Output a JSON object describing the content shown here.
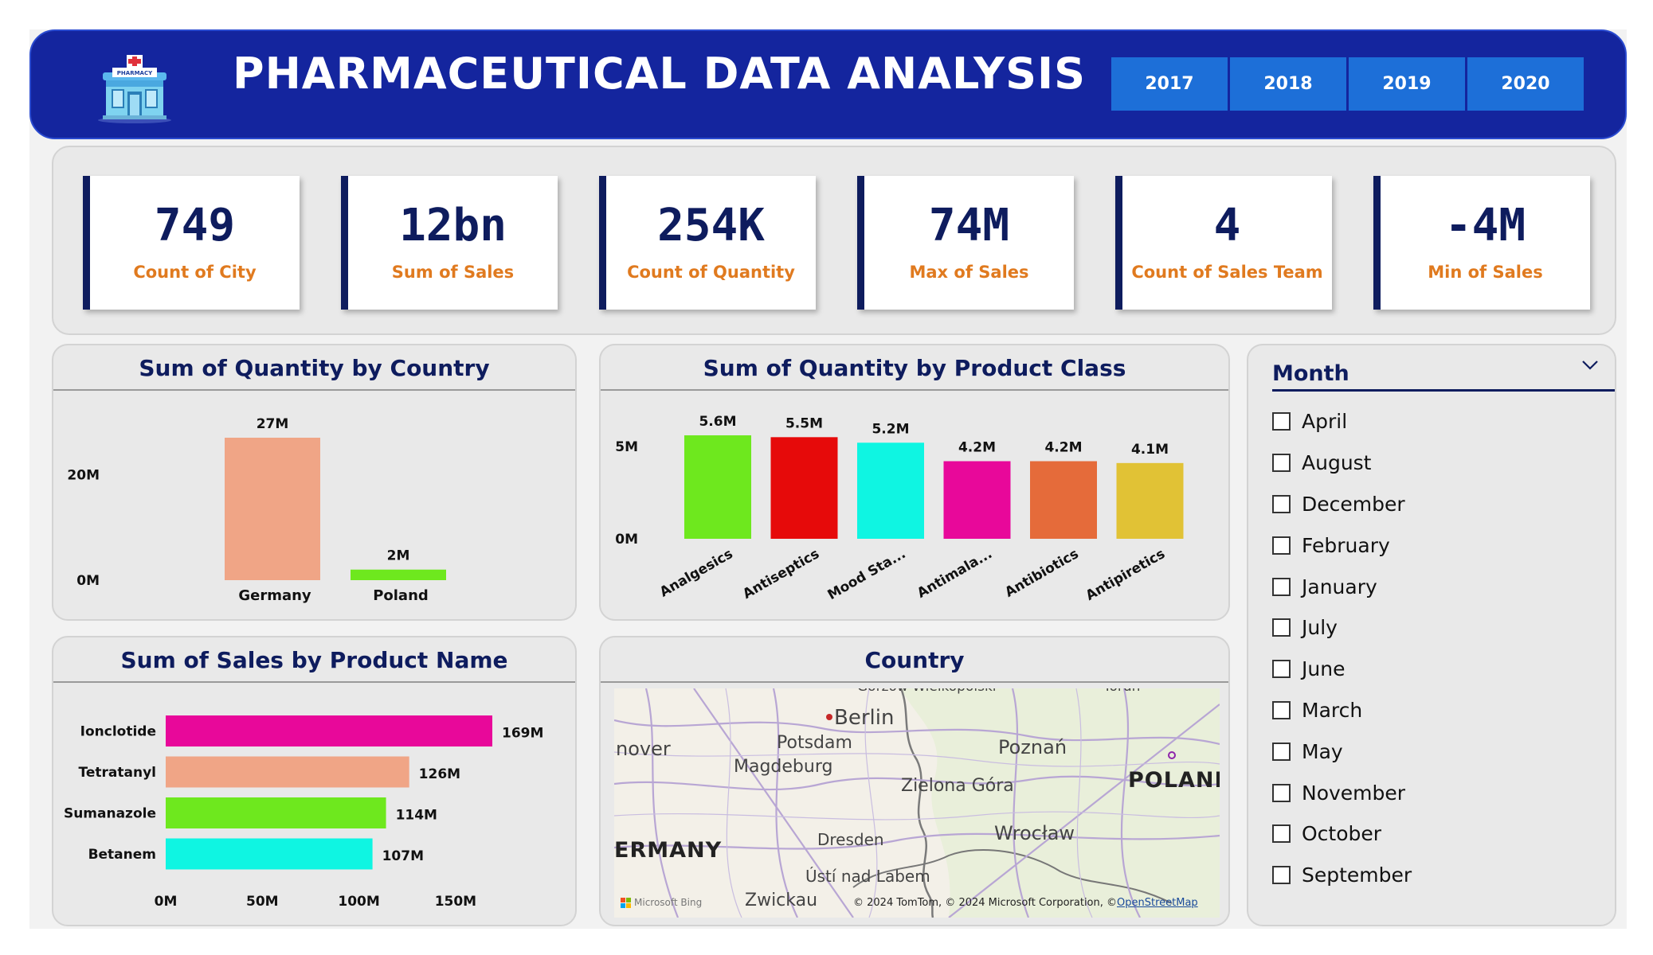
{
  "header": {
    "title": "PHARMACEUTICAL DATA ANALYSIS",
    "logo_icon": "pharmacy-building-icon",
    "logo_sign": "PHARMACY",
    "years": [
      "2017",
      "2018",
      "2019",
      "2020"
    ]
  },
  "kpis": [
    {
      "value": "749",
      "label": "Count of City"
    },
    {
      "value": "12bn",
      "label": "Sum of Sales"
    },
    {
      "value": "254K",
      "label": "Count of Quantity"
    },
    {
      "value": "74M",
      "label": "Max of Sales"
    },
    {
      "value": "4",
      "label": "Count of Sales Team"
    },
    {
      "value": "-4M",
      "label": "Min of Sales"
    }
  ],
  "colors": {
    "header_bg": "#14259e",
    "year_button": "#1d6fd8",
    "kpi_value": "#0e1c5e",
    "kpi_label": "#e07a1f",
    "panel_title": "#0e1c5e"
  },
  "chart_data": [
    {
      "type": "bar",
      "title": "Sum of Quantity by Country",
      "categories": [
        "Germany",
        "Poland"
      ],
      "values": [
        27000000,
        2000000
      ],
      "data_labels": [
        "27M",
        "2M"
      ],
      "colors": [
        "#f0a586",
        "#6ee81e"
      ],
      "y_ticks": [
        {
          "value": 0,
          "label": "0M"
        },
        {
          "value": 20000000,
          "label": "20M"
        }
      ],
      "ylim": [
        0,
        27000000
      ],
      "grid": false
    },
    {
      "type": "bar",
      "title": "Sum of Quantity by Product Class",
      "categories": [
        "Analgesics",
        "Antiseptics",
        "Mood Sta...",
        "Antimala...",
        "Antibiotics",
        "Antipiretics"
      ],
      "values": [
        5600000,
        5500000,
        5200000,
        4200000,
        4200000,
        4100000
      ],
      "data_labels": [
        "5.6M",
        "5.5M",
        "5.2M",
        "4.2M",
        "4.2M",
        "4.1M"
      ],
      "colors": [
        "#6ee81e",
        "#e60a0a",
        "#0ff5e2",
        "#e8089a",
        "#e56b3a",
        "#e1c235"
      ],
      "y_ticks": [
        {
          "value": 0,
          "label": "0M"
        },
        {
          "value": 5000000,
          "label": "5M"
        }
      ],
      "ylim": [
        0,
        5600000
      ],
      "grid": false
    },
    {
      "type": "bar",
      "orientation": "horizontal",
      "title": "Sum of Sales by Product Name",
      "categories": [
        "Ionclotide",
        "Tetratanyl",
        "Sumanazole",
        "Betanem"
      ],
      "values": [
        169000000,
        126000000,
        114000000,
        107000000
      ],
      "data_labels": [
        "169M",
        "126M",
        "114M",
        "107M"
      ],
      "colors": [
        "#e8089a",
        "#f0a586",
        "#6ee81e",
        "#0ff5e2"
      ],
      "x_ticks": [
        {
          "value": 0,
          "label": "0M"
        },
        {
          "value": 50000000,
          "label": "50M"
        },
        {
          "value": 100000000,
          "label": "100M"
        },
        {
          "value": 150000000,
          "label": "150M"
        }
      ],
      "xlim": [
        0,
        169000000
      ],
      "grid": false
    }
  ],
  "map": {
    "title": "Country",
    "labels": [
      "Berlin",
      "Potsdam",
      "Magdeburg",
      "nover",
      "Poznań",
      "Zielona Góra",
      "POLAND",
      "ERMANY",
      "Dresden",
      "Wrocław",
      "Ústí nad Labem",
      "Zwickau",
      "Gorzów Wielkopolski",
      "Toruń"
    ],
    "attribution_prefix": "© 2024 TomTom, © 2024 Microsoft Corporation, ©",
    "attribution_link": "OpenStreetMap",
    "bing": "Microsoft Bing"
  },
  "slicer": {
    "title": "Month",
    "chevron_icon": "chevron-down-icon",
    "items": [
      "April",
      "August",
      "December",
      "February",
      "January",
      "July",
      "June",
      "March",
      "May",
      "November",
      "October",
      "September"
    ]
  }
}
